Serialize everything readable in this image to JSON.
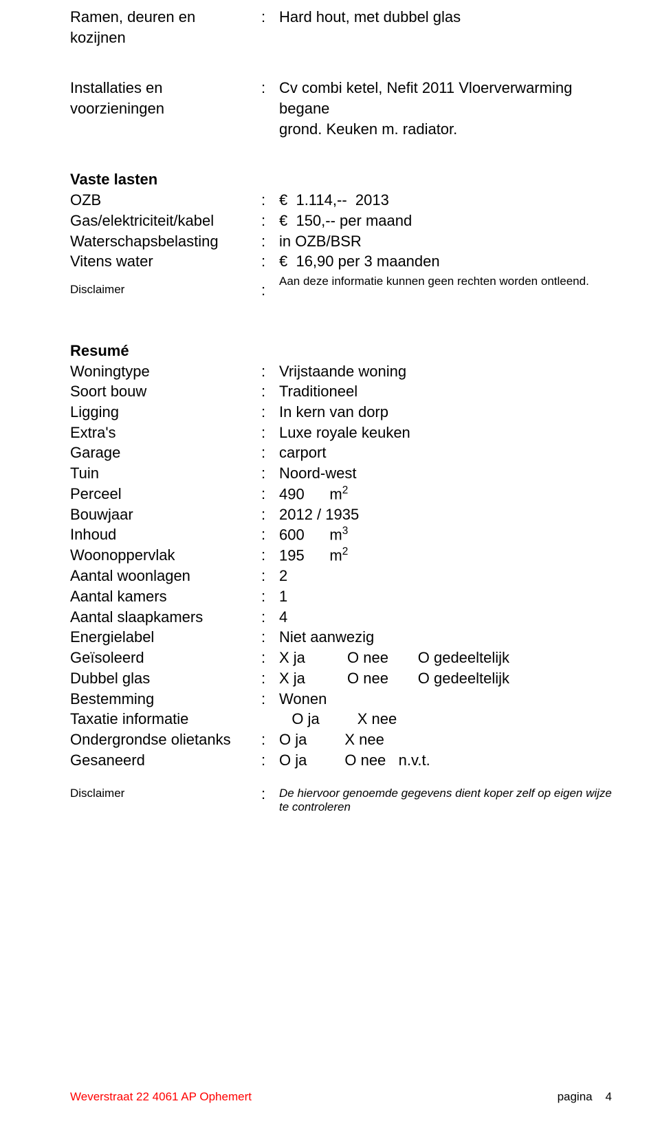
{
  "s1": {
    "title": "Ramen, deuren en",
    "title2": "kozijnen",
    "value": "Hard hout, met dubbel glas"
  },
  "s2": {
    "title": "Installaties en",
    "title2": "voorzieningen",
    "value_l1": "Cv combi ketel, Nefit  2011  Vloerverwarming begane",
    "value_l2": "grond. Keuken m. radiator."
  },
  "vaste": {
    "title": "Vaste lasten",
    "rows": [
      {
        "label": "OZB",
        "value": "€  1.114,--  2013"
      },
      {
        "label": "Gas/elektriciteit/kabel",
        "value": "€  150,-- per maand"
      },
      {
        "label": "Waterschapsbelasting",
        "value": "in OZB/BSR"
      },
      {
        "label": "Vitens water",
        "value": "€  16,90 per 3 maanden"
      }
    ],
    "disclaimer_label": "Disclaimer",
    "disclaimer_value": "Aan deze informatie kunnen geen rechten worden ontleend."
  },
  "resume": {
    "title": "Resumé",
    "rows": [
      {
        "label": "Woningtype",
        "value": "Vrijstaande woning"
      },
      {
        "label": "Soort bouw",
        "value": "Traditioneel"
      },
      {
        "label": "Ligging",
        "value": "In kern van dorp"
      },
      {
        "label": "Extra's",
        "value": "Luxe royale keuken"
      },
      {
        "label": "Garage",
        "value": "carport"
      },
      {
        "label": "Tuin",
        "value": "Noord-west"
      },
      {
        "label": "Perceel",
        "value_html": "490      m<sup>2</sup>"
      },
      {
        "label": "Bouwjaar",
        "value": "2012 / 1935"
      },
      {
        "label": "Inhoud",
        "value_html": "600      m<sup>3</sup>"
      },
      {
        "label": "Woonoppervlak",
        "value_html": "195      m<sup>2</sup>"
      },
      {
        "label": "Aantal woonlagen",
        "value": "2"
      },
      {
        "label": "Aantal kamers",
        "value": "1"
      },
      {
        "label": "Aantal slaapkamers",
        "value": "4"
      },
      {
        "label": "Energielabel",
        "value": "Niet aanwezig"
      },
      {
        "label": "Geïsoleerd",
        "value": "X ja          O nee       O gedeeltelijk"
      },
      {
        "label": "Dubbel glas",
        "value": "X ja          O nee       O gedeeltelijk"
      },
      {
        "label": "Bestemming",
        "value": "Wonen"
      },
      {
        "label": "Taxatie informatie",
        "no_colon": true,
        "value": "   O ja         X nee"
      },
      {
        "label": "Ondergrondse olietanks",
        "value": "O ja         X nee"
      },
      {
        "label": "Gesaneerd",
        "value": "O ja         O nee   n.v.t."
      }
    ],
    "disclaimer_label": "Disclaimer",
    "disclaimer_value": "De hiervoor genoemde gegevens dient koper zelf op eigen wijze te controleren"
  },
  "footer": {
    "left": "Weverstraat  22  4061 AP Ophemert",
    "right_label": "pagina",
    "right_num": "4"
  },
  "colors": {
    "text": "#000000",
    "accent": "#ff0000",
    "background": "#ffffff"
  },
  "font_sizes": {
    "body": 22,
    "small": 17
  }
}
